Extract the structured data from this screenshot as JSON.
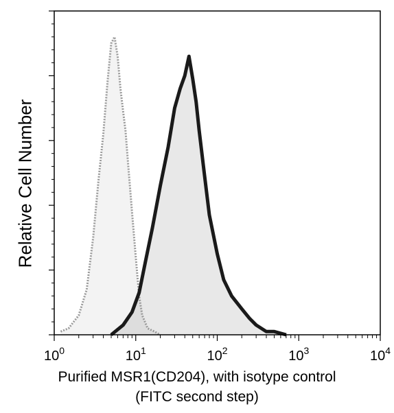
{
  "chart_data": {
    "type": "area",
    "ylabel": "Relative Cell Number",
    "xlabel_lines": [
      "Purified MSR1(CD204), with isotype control",
      "(FITC second step)"
    ],
    "x_scale": "log",
    "xlim": [
      1,
      10000
    ],
    "ylim": [
      0,
      100
    ],
    "x_ticks": [
      {
        "base": "10",
        "exp": "0",
        "value": 1
      },
      {
        "base": "10",
        "exp": "1",
        "value": 10
      },
      {
        "base": "10",
        "exp": "2",
        "value": 100
      },
      {
        "base": "10",
        "exp": "3",
        "value": 1000
      },
      {
        "base": "10",
        "exp": "4",
        "value": 10000
      }
    ],
    "y_ticks": [
      0,
      20,
      40,
      60,
      80,
      100
    ],
    "grid": false,
    "series": [
      {
        "role": "isotype control",
        "color": "#9a9a9a",
        "x": [
          1.2,
          1.5,
          2.0,
          2.5,
          3.0,
          3.5,
          4.0,
          4.5,
          5.0,
          5.5,
          6.0,
          6.5,
          7.0,
          7.5,
          8.0,
          9.0,
          10,
          11,
          12,
          14,
          17,
          20
        ],
        "y": [
          1,
          2,
          6,
          14,
          30,
          48,
          62,
          78,
          90,
          92,
          86,
          76,
          69,
          63,
          54,
          38,
          24,
          12,
          6,
          2,
          1,
          0
        ]
      },
      {
        "role": "MSR1 (CD204)",
        "color": "#1a1a1a",
        "x": [
          5,
          7,
          9,
          11,
          13,
          16,
          20,
          25,
          30,
          35,
          40,
          45,
          50,
          55,
          60,
          70,
          80,
          100,
          120,
          150,
          200,
          250,
          300,
          400,
          500,
          700
        ],
        "y": [
          0,
          3,
          7,
          13,
          22,
          33,
          46,
          58,
          70,
          76,
          80,
          86,
          79,
          72,
          63,
          49,
          37,
          25,
          17,
          12,
          8,
          5,
          3,
          1,
          1,
          0
        ]
      }
    ]
  }
}
